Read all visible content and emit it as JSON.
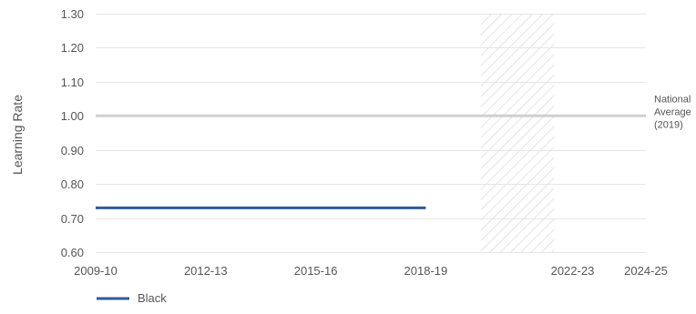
{
  "chart_data": {
    "type": "line",
    "title": "",
    "xlabel": "",
    "ylabel": "Learning Rate",
    "x_ticks": [
      "2009-10",
      "2012-13",
      "2015-16",
      "2018-19",
      "2022-23",
      "2024-25"
    ],
    "x_range": [
      2009,
      2024
    ],
    "ylim": [
      0.6,
      1.3
    ],
    "y_ticks": [
      0.6,
      0.7,
      0.8,
      0.9,
      1.0,
      1.1,
      1.2,
      1.3
    ],
    "y_tick_labels": [
      "0.60",
      "0.70",
      "0.80",
      "0.90",
      "1.00",
      "1.10",
      "1.20",
      "1.30"
    ],
    "grid": true,
    "series": [
      {
        "name": "Black",
        "color": "#2f5b9e",
        "x": [
          2009,
          2010,
          2011,
          2012,
          2013,
          2014,
          2015,
          2016,
          2017,
          2018
        ],
        "values": [
          0.73,
          0.73,
          0.73,
          0.73,
          0.73,
          0.73,
          0.73,
          0.73,
          0.73,
          0.73
        ]
      }
    ],
    "reference_line": {
      "value": 1.0,
      "label_lines": [
        "National",
        "Average",
        "(2019)"
      ],
      "color": "#d0d0d0"
    },
    "hatched_region": {
      "x_start": 2019.5,
      "x_end": 2021.5
    },
    "legend": {
      "position": "bottom-left",
      "entries": [
        "Black"
      ]
    }
  }
}
